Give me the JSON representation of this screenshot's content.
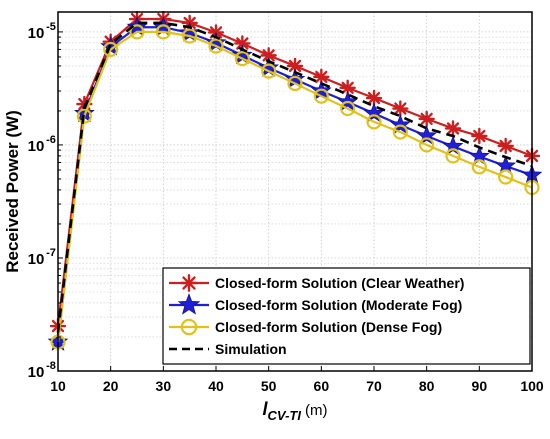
{
  "chart_data": {
    "type": "line",
    "x": [
      10,
      15,
      20,
      25,
      30,
      35,
      40,
      45,
      50,
      55,
      60,
      65,
      70,
      75,
      80,
      85,
      90,
      95,
      100
    ],
    "xlabel_main": "l",
    "xlabel_sub": "CV-TI",
    "xlabel_unit": "(m)",
    "ylabel": "Received Power (W)",
    "xlim": [
      10,
      100
    ],
    "ylim": [
      1e-08,
      1.5e-05
    ],
    "yscale": "log",
    "grid": true,
    "legend_position": "bottom-right",
    "x_ticks": [
      "10",
      "20",
      "30",
      "40",
      "50",
      "60",
      "70",
      "80",
      "90",
      "100"
    ],
    "y_tick_base": "10",
    "y_ticks": [
      {
        "exp": "-8",
        "value": 1e-08
      },
      {
        "exp": "-7",
        "value": 1e-07
      },
      {
        "exp": "-6",
        "value": 1e-06
      },
      {
        "exp": "-5",
        "value": 1e-05
      }
    ],
    "series": [
      {
        "name": "Closed-form Solution (Clear Weather)",
        "color": "#cc1f1f",
        "marker": "asterisk",
        "values": [
          2.5e-08,
          2.3e-06,
          8.2e-06,
          1.3e-05,
          1.3e-05,
          1.2e-05,
          9.9e-06,
          7.9e-06,
          6.2e-06,
          5e-06,
          4e-06,
          3.2e-06,
          2.6e-06,
          2.1e-06,
          1.7e-06,
          1.4e-06,
          1.2e-06,
          9.8e-07,
          8e-07
        ]
      },
      {
        "name": "Closed-form Solution (Moderate Fog)",
        "color": "#1f1fd6",
        "marker": "star",
        "values": [
          1.8e-08,
          1.9e-06,
          7.4e-06,
          1.1e-05,
          1.1e-05,
          9.8e-06,
          8e-06,
          6.2e-06,
          4.8e-06,
          3.8e-06,
          3e-06,
          2.4e-06,
          1.9e-06,
          1.5e-06,
          1.2e-06,
          9.7e-07,
          7.9e-07,
          6.5e-07,
          5.4e-07
        ]
      },
      {
        "name": "Closed-form Solution (Dense Fog)",
        "color": "#e0c21b",
        "marker": "circle",
        "values": [
          1.8e-08,
          1.8e-06,
          7e-06,
          1e-05,
          1e-05,
          9.2e-06,
          7.5e-06,
          5.8e-06,
          4.5e-06,
          3.5e-06,
          2.7e-06,
          2.1e-06,
          1.6e-06,
          1.3e-06,
          1e-06,
          8e-07,
          6.4e-07,
          5.2e-07,
          4.2e-07
        ]
      },
      {
        "name": "Simulation",
        "color": "#000000",
        "marker": "dashed",
        "values": [
          2.2e-08,
          2.1e-06,
          7.8e-06,
          1.2e-05,
          1.2e-05,
          1.1e-05,
          9e-06,
          7e-06,
          5.5e-06,
          4.4e-06,
          3.5e-06,
          2.8e-06,
          2.2e-06,
          1.8e-06,
          1.4e-06,
          1.2e-06,
          9.5e-07,
          7.8e-07,
          6.5e-07
        ]
      }
    ]
  }
}
